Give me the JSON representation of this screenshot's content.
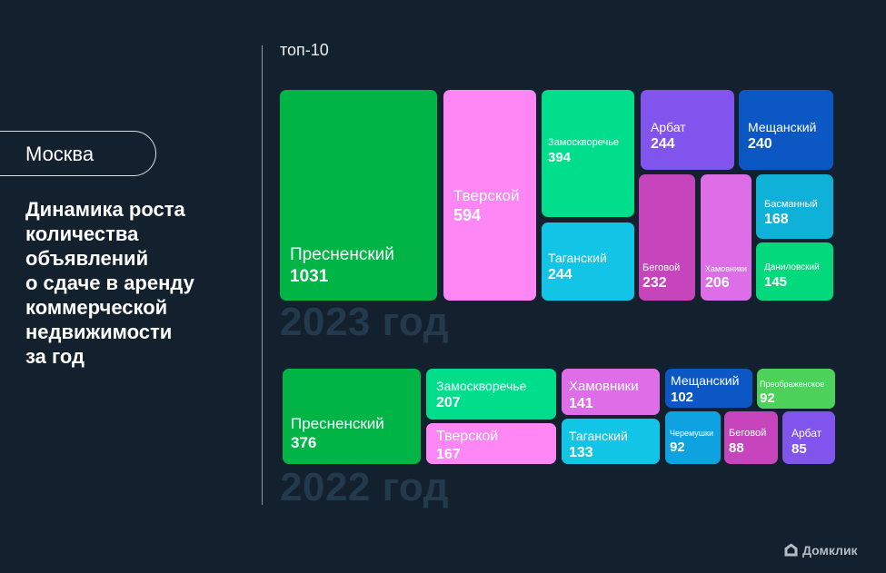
{
  "city": "Москва",
  "headline": "Динамика роста\nколичества\nобъявлений\nо сдаче в аренду\nкоммерческой\nнедвижимости\nза год",
  "top_label": "топ-10",
  "brand": "Домклик",
  "colors": {
    "background": "#13202d",
    "year_text": "#223a4c"
  },
  "chart_data": [
    {
      "type": "treemap",
      "title": "2023 год",
      "items": [
        {
          "name": "Пресненский",
          "value": 1031,
          "color": "#00b545"
        },
        {
          "name": "Тверской",
          "value": 594,
          "color": "#ff86f5"
        },
        {
          "name": "Замоскворечье",
          "value": 394,
          "color": "#00de8c"
        },
        {
          "name": "Таганский",
          "value": 244,
          "color": "#12c5e6"
        },
        {
          "name": "Арбат",
          "value": 244,
          "color": "#8254ee"
        },
        {
          "name": "Мещанский",
          "value": 240,
          "color": "#0b57c4"
        },
        {
          "name": "Беговой",
          "value": 232,
          "color": "#c645bc"
        },
        {
          "name": "Хамовники",
          "value": 206,
          "color": "#dd6ee8"
        },
        {
          "name": "Басманный",
          "value": 168,
          "color": "#0fb1d8"
        },
        {
          "name": "Даниловский",
          "value": 145,
          "color": "#01d97c"
        }
      ]
    },
    {
      "type": "treemap",
      "title": "2022 год",
      "items": [
        {
          "name": "Пресненский",
          "value": 376,
          "color": "#00b545"
        },
        {
          "name": "Замоскворечье",
          "value": 207,
          "color": "#00de8c"
        },
        {
          "name": "Тверской",
          "value": 167,
          "color": "#ff86f5"
        },
        {
          "name": "Хамовники",
          "value": 141,
          "color": "#dd6ee8"
        },
        {
          "name": "Таганский",
          "value": 133,
          "color": "#12c5e6"
        },
        {
          "name": "Мещанский",
          "value": 102,
          "color": "#0b57c4"
        },
        {
          "name": "Преображенское",
          "value": 92,
          "color": "#4cd15a"
        },
        {
          "name": "Черемушки",
          "value": 92,
          "color": "#0fa2e0"
        },
        {
          "name": "Беговой",
          "value": 88,
          "color": "#c645bc"
        },
        {
          "name": "Арбат",
          "value": 85,
          "color": "#8254ee"
        }
      ]
    }
  ]
}
